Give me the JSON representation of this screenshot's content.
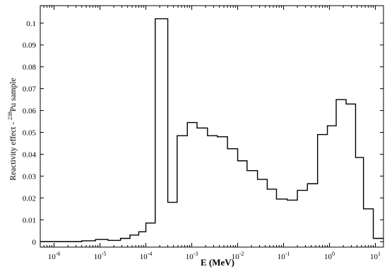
{
  "chart_data": {
    "type": "line",
    "step": true,
    "xlabel": "E (MeV)",
    "ylabel_prefix": "Reactivity effect - ",
    "ylabel_isotope_mass": "238",
    "ylabel_suffix": "Pu sample",
    "x_scale": "log",
    "xlim": [
      5e-07,
      15
    ],
    "ylim": [
      -0.0025,
      0.108
    ],
    "grid": false,
    "x_ticks": [
      {
        "value": 1e-06,
        "base": "10",
        "exp": "-6"
      },
      {
        "value": 1e-05,
        "base": "10",
        "exp": "-5"
      },
      {
        "value": 0.0001,
        "base": "10",
        "exp": "-4"
      },
      {
        "value": 0.001,
        "base": "10",
        "exp": "-3"
      },
      {
        "value": 0.01,
        "base": "10",
        "exp": "-2"
      },
      {
        "value": 0.1,
        "base": "10",
        "exp": "-1"
      },
      {
        "value": 1,
        "base": "10",
        "exp": "0"
      },
      {
        "value": 10,
        "base": "10",
        "exp": "1"
      }
    ],
    "y_ticks": [
      {
        "value": 0,
        "label": "0"
      },
      {
        "value": 0.01,
        "label": "0.01"
      },
      {
        "value": 0.02,
        "label": "0.02"
      },
      {
        "value": 0.03,
        "label": "0.03"
      },
      {
        "value": 0.04,
        "label": "0.04"
      },
      {
        "value": 0.05,
        "label": "0.05"
      },
      {
        "value": 0.06,
        "label": "0.06"
      },
      {
        "value": 0.07,
        "label": "0.07"
      },
      {
        "value": 0.08,
        "label": "0.08"
      },
      {
        "value": 0.09,
        "label": "0.09"
      },
      {
        "value": 0.1,
        "label": "0.1"
      }
    ],
    "bins": [
      {
        "x0": 5e-07,
        "x1": 4e-06,
        "value": 0.0
      },
      {
        "x0": 4e-06,
        "x1": 8e-06,
        "value": 0.0004
      },
      {
        "x0": 8e-06,
        "x1": 1.5e-05,
        "value": 0.001
      },
      {
        "x0": 1.5e-05,
        "x1": 2.8e-05,
        "value": 0.0006
      },
      {
        "x0": 2.8e-05,
        "x1": 4.5e-05,
        "value": 0.0015
      },
      {
        "x0": 4.5e-05,
        "x1": 7e-05,
        "value": 0.003
      },
      {
        "x0": 7e-05,
        "x1": 0.0001,
        "value": 0.0045
      },
      {
        "x0": 0.0001,
        "x1": 0.00016,
        "value": 0.0085
      },
      {
        "x0": 0.00016,
        "x1": 0.0003,
        "value": 0.102
      },
      {
        "x0": 0.0003,
        "x1": 0.00048,
        "value": 0.018
      },
      {
        "x0": 0.00048,
        "x1": 0.0008,
        "value": 0.0485
      },
      {
        "x0": 0.0008,
        "x1": 0.0013,
        "value": 0.0545
      },
      {
        "x0": 0.0013,
        "x1": 0.0022,
        "value": 0.052
      },
      {
        "x0": 0.0022,
        "x1": 0.0036,
        "value": 0.0485
      },
      {
        "x0": 0.0036,
        "x1": 0.006,
        "value": 0.048
      },
      {
        "x0": 0.006,
        "x1": 0.01,
        "value": 0.0425
      },
      {
        "x0": 0.01,
        "x1": 0.016,
        "value": 0.037
      },
      {
        "x0": 0.016,
        "x1": 0.027,
        "value": 0.0325
      },
      {
        "x0": 0.027,
        "x1": 0.044,
        "value": 0.0285
      },
      {
        "x0": 0.044,
        "x1": 0.07,
        "value": 0.024
      },
      {
        "x0": 0.07,
        "x1": 0.12,
        "value": 0.0195
      },
      {
        "x0": 0.12,
        "x1": 0.2,
        "value": 0.019
      },
      {
        "x0": 0.2,
        "x1": 0.33,
        "value": 0.0235
      },
      {
        "x0": 0.33,
        "x1": 0.55,
        "value": 0.0265
      },
      {
        "x0": 0.55,
        "x1": 0.9,
        "value": 0.049
      },
      {
        "x0": 0.9,
        "x1": 1.4,
        "value": 0.053
      },
      {
        "x0": 1.4,
        "x1": 2.3,
        "value": 0.065
      },
      {
        "x0": 2.3,
        "x1": 3.7,
        "value": 0.063
      },
      {
        "x0": 3.7,
        "x1": 5.5,
        "value": 0.0385
      },
      {
        "x0": 5.5,
        "x1": 9.0,
        "value": 0.015
      },
      {
        "x0": 9.0,
        "x1": 15,
        "value": 0.0015
      }
    ]
  }
}
